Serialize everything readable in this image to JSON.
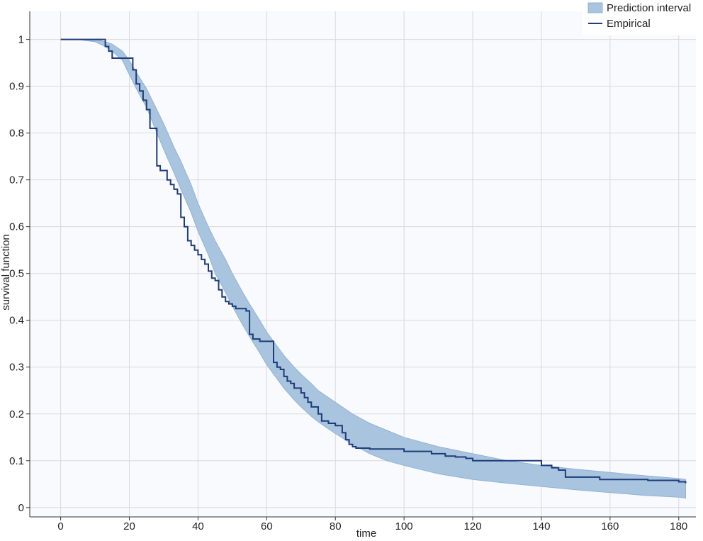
{
  "chart_data": {
    "type": "area",
    "title": "",
    "xlabel": "time",
    "ylabel": "survival function",
    "xlim": [
      -9,
      185
    ],
    "ylim": [
      -0.02,
      1.06
    ],
    "x_ticks": [
      0,
      20,
      40,
      60,
      80,
      100,
      120,
      140,
      160,
      180
    ],
    "y_ticks": [
      0,
      0.1,
      0.2,
      0.3,
      0.4,
      0.5,
      0.6,
      0.7,
      0.8,
      0.9,
      1
    ],
    "x_tick_labels": [
      "0",
      "20",
      "40",
      "60",
      "80",
      "100",
      "120",
      "140",
      "160",
      "180"
    ],
    "y_tick_labels": [
      "0",
      "0.1",
      "0.2",
      "0.3",
      "0.4",
      "0.5",
      "0.6",
      "0.7",
      "0.8",
      "0.9",
      "1"
    ],
    "grid": true,
    "legend_position": "top-right",
    "legend": [
      "Prediction interval",
      "Empirical"
    ],
    "colors": {
      "band_fill": "#a9c4de",
      "band_stroke": "#93b3d3",
      "line": "#1d3c7a",
      "plot_bg": "#f9fafd",
      "grid": "#d9d9d9"
    },
    "series": [
      {
        "name": "Prediction interval",
        "kind": "band",
        "x": [
          0,
          5,
          10,
          13,
          15,
          18,
          20,
          22,
          25,
          28,
          30,
          33,
          35,
          38,
          40,
          43,
          45,
          48,
          50,
          53,
          55,
          58,
          60,
          63,
          65,
          68,
          70,
          73,
          75,
          78,
          80,
          85,
          90,
          95,
          100,
          110,
          120,
          130,
          140,
          150,
          160,
          170,
          180,
          182
        ],
        "upper": [
          1.0,
          1.0,
          1.0,
          0.995,
          0.99,
          0.975,
          0.955,
          0.93,
          0.895,
          0.85,
          0.82,
          0.77,
          0.74,
          0.69,
          0.65,
          0.6,
          0.57,
          0.53,
          0.5,
          0.46,
          0.435,
          0.4,
          0.375,
          0.345,
          0.325,
          0.3,
          0.285,
          0.265,
          0.25,
          0.235,
          0.225,
          0.2,
          0.18,
          0.165,
          0.15,
          0.13,
          0.115,
          0.1,
          0.09,
          0.082,
          0.075,
          0.068,
          0.062,
          0.06
        ],
        "lower": [
          1.0,
          1.0,
          0.995,
          0.985,
          0.975,
          0.955,
          0.925,
          0.895,
          0.855,
          0.8,
          0.765,
          0.715,
          0.68,
          0.63,
          0.59,
          0.54,
          0.5,
          0.46,
          0.43,
          0.39,
          0.365,
          0.33,
          0.305,
          0.275,
          0.255,
          0.23,
          0.215,
          0.195,
          0.183,
          0.168,
          0.158,
          0.135,
          0.115,
          0.1,
          0.09,
          0.072,
          0.06,
          0.052,
          0.045,
          0.038,
          0.032,
          0.026,
          0.022,
          0.02
        ]
      },
      {
        "name": "Empirical",
        "kind": "step",
        "x": [
          0,
          13,
          14,
          15,
          16,
          21,
          22,
          23,
          24,
          25,
          26,
          27,
          28,
          29,
          31,
          32,
          33,
          34,
          35,
          36,
          37,
          38,
          39,
          40,
          41,
          42,
          43,
          44,
          45,
          46,
          47,
          48,
          49,
          50,
          51,
          52,
          54,
          55,
          56,
          58,
          59,
          62,
          63,
          64,
          65,
          66,
          67,
          68,
          70,
          71,
          72,
          73,
          75,
          76,
          78,
          80,
          82,
          83,
          84,
          85,
          86,
          88,
          90,
          95,
          100,
          105,
          108,
          112,
          115,
          118,
          120,
          125,
          130,
          135,
          140,
          143,
          145,
          147,
          150,
          155,
          157,
          160,
          165,
          170,
          171,
          175,
          180,
          182
        ],
        "y": [
          1.0,
          0.985,
          0.975,
          0.96,
          0.96,
          0.935,
          0.905,
          0.89,
          0.87,
          0.85,
          0.81,
          0.81,
          0.73,
          0.72,
          0.7,
          0.69,
          0.68,
          0.67,
          0.62,
          0.6,
          0.57,
          0.56,
          0.55,
          0.54,
          0.53,
          0.52,
          0.505,
          0.49,
          0.485,
          0.465,
          0.45,
          0.44,
          0.435,
          0.43,
          0.425,
          0.425,
          0.42,
          0.37,
          0.36,
          0.355,
          0.355,
          0.31,
          0.3,
          0.295,
          0.28,
          0.27,
          0.265,
          0.255,
          0.245,
          0.235,
          0.225,
          0.215,
          0.2,
          0.185,
          0.18,
          0.175,
          0.16,
          0.145,
          0.135,
          0.13,
          0.127,
          0.127,
          0.125,
          0.125,
          0.12,
          0.12,
          0.115,
          0.11,
          0.108,
          0.105,
          0.1,
          0.1,
          0.1,
          0.1,
          0.09,
          0.085,
          0.08,
          0.065,
          0.065,
          0.065,
          0.06,
          0.06,
          0.06,
          0.06,
          0.058,
          0.058,
          0.055,
          0.052
        ]
      }
    ]
  }
}
